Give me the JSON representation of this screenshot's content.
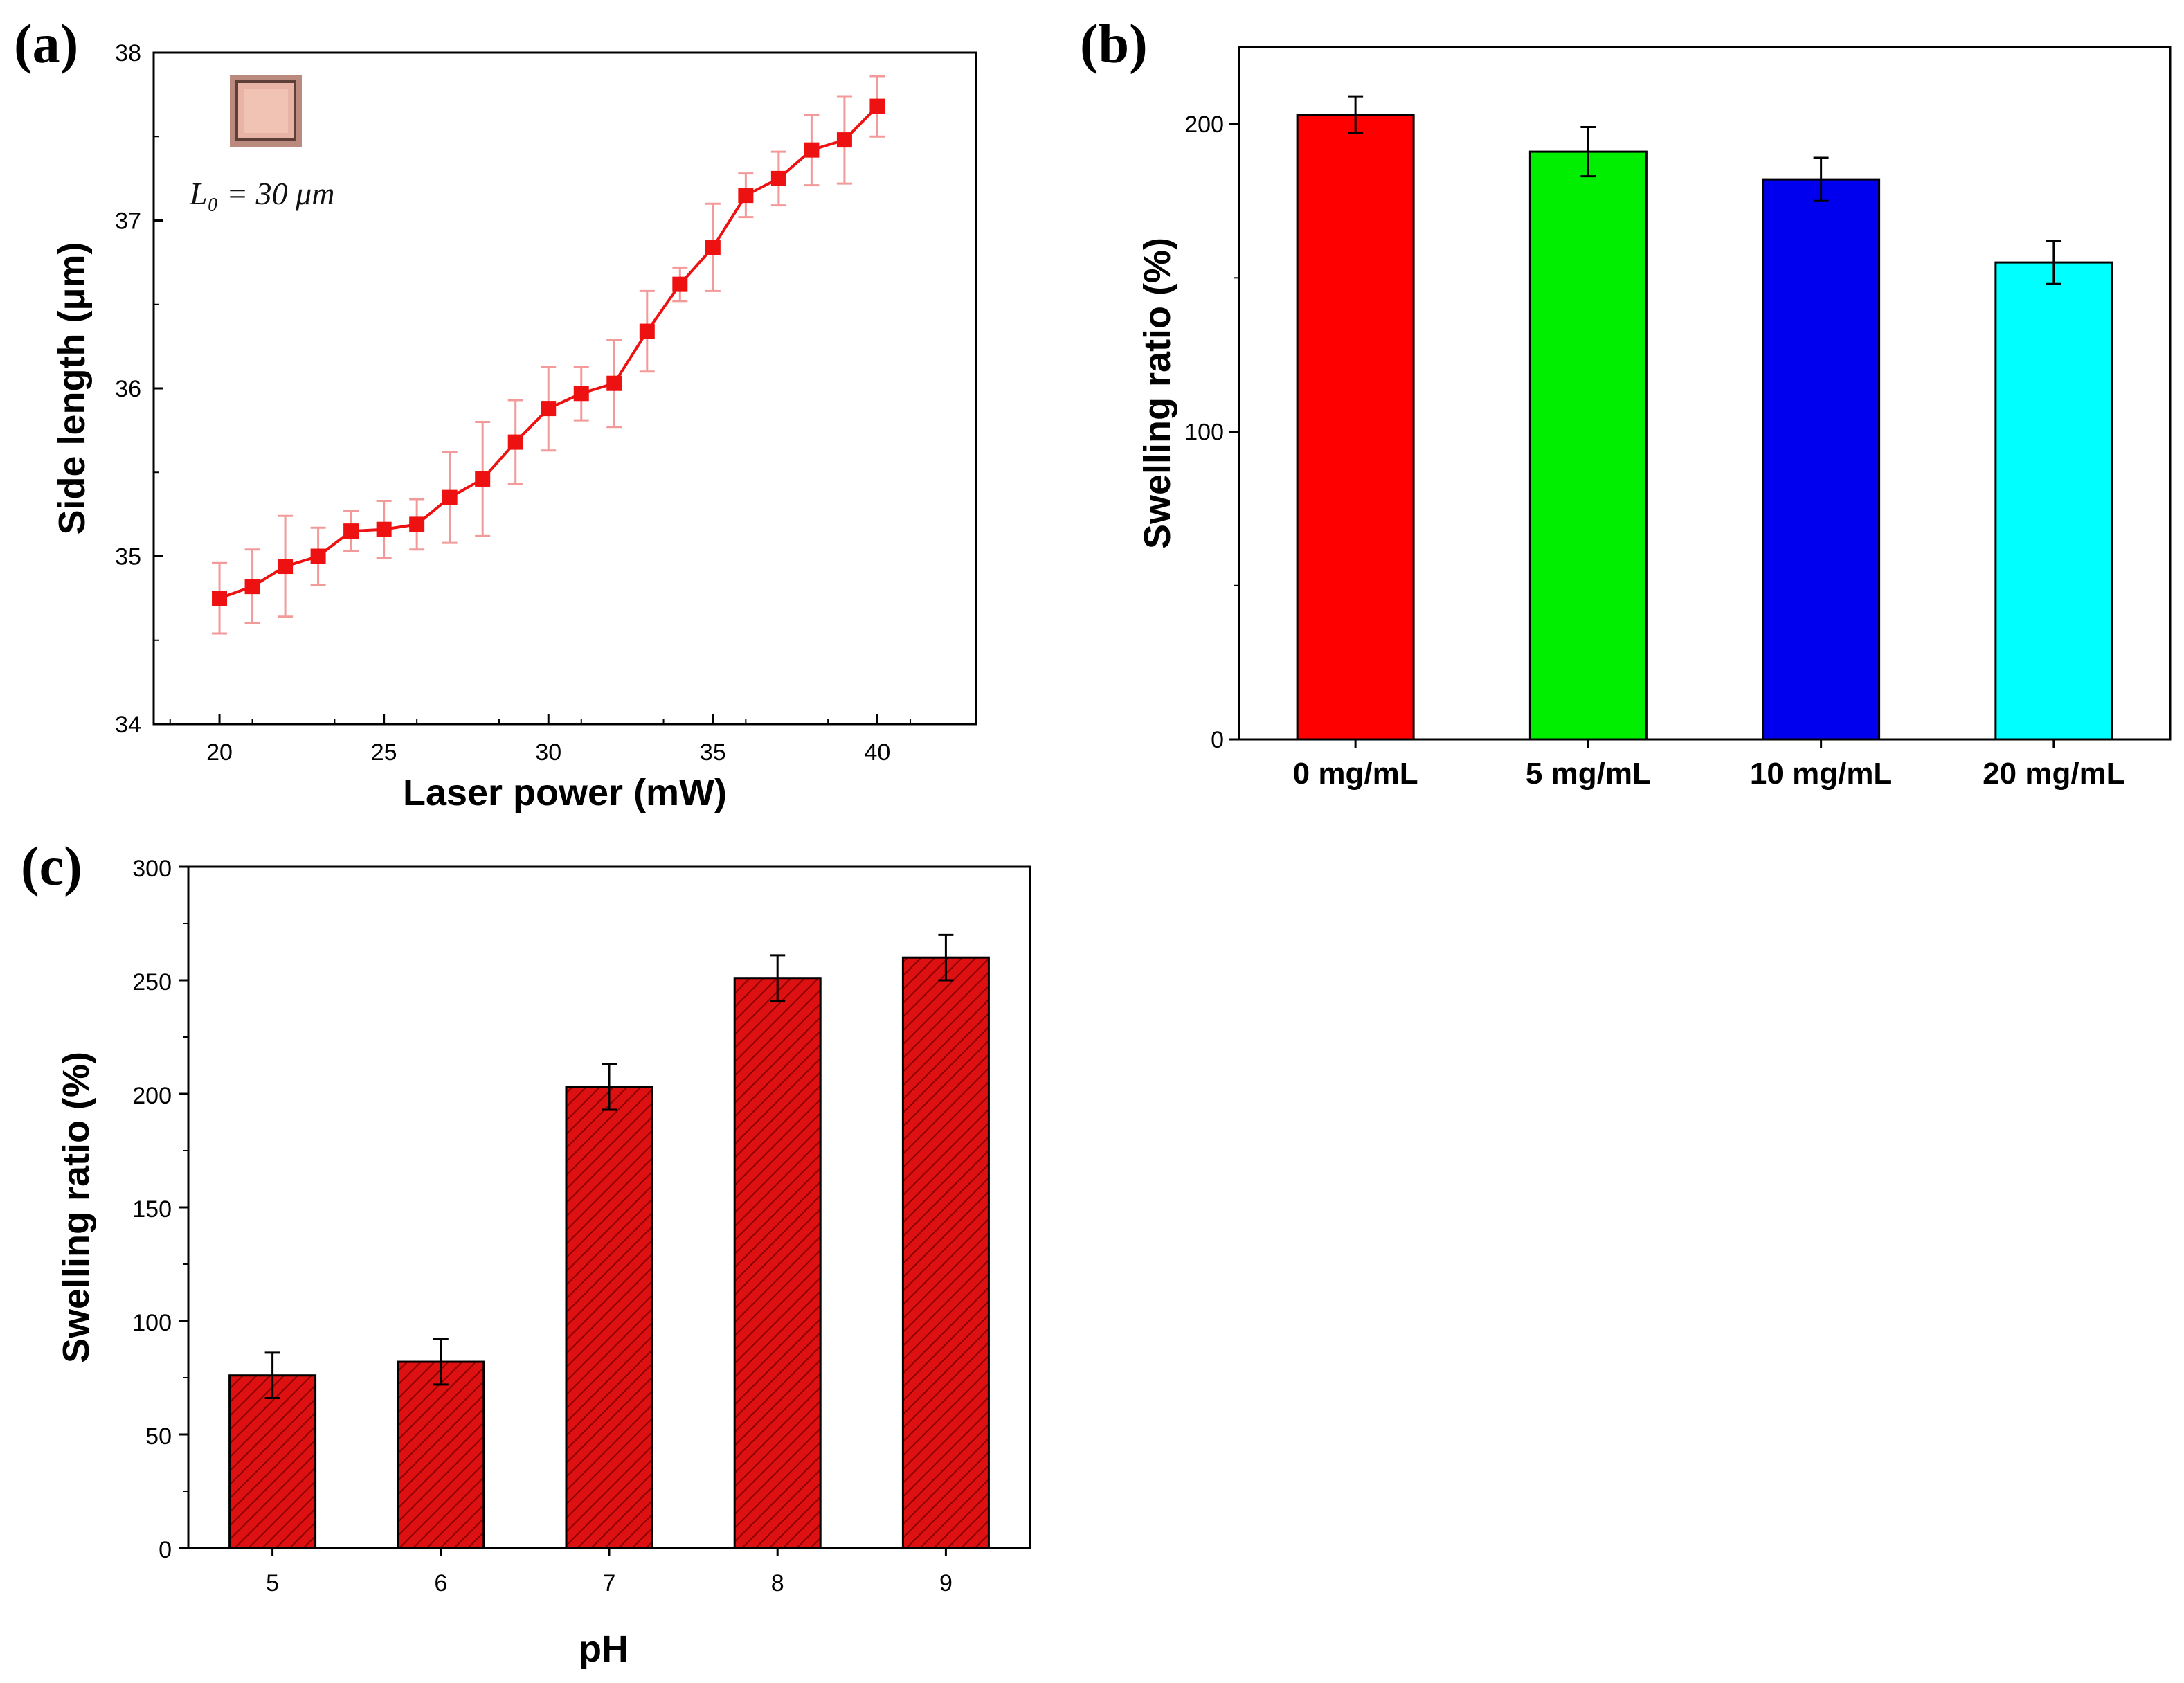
{
  "colors": {
    "series_a": "#ee1111",
    "errbar_a": "#f29a9a",
    "hatch_c": "#cc1111"
  },
  "inset_icon": "hydrogel-square-icon",
  "chart_data": [
    {
      "panel_label": "(a)",
      "type": "line",
      "x": [
        20,
        21,
        22,
        23,
        24,
        25,
        26,
        27,
        28,
        29,
        30,
        31,
        32,
        33,
        34,
        35,
        36,
        37,
        38,
        39,
        40
      ],
      "values": [
        34.75,
        34.82,
        34.94,
        35.0,
        35.15,
        35.16,
        35.19,
        35.35,
        35.46,
        35.68,
        35.88,
        35.97,
        36.03,
        36.34,
        36.62,
        36.84,
        37.15,
        37.25,
        37.42,
        37.48,
        37.68
      ],
      "errors": [
        0.21,
        0.22,
        0.3,
        0.17,
        0.12,
        0.17,
        0.15,
        0.27,
        0.34,
        0.25,
        0.25,
        0.16,
        0.26,
        0.24,
        0.1,
        0.26,
        0.13,
        0.16,
        0.21,
        0.26,
        0.18
      ],
      "xlabel": "Laser power (mW)",
      "ylabel": "Side length (μm)",
      "xlim": [
        18,
        43
      ],
      "ylim": [
        34,
        38
      ],
      "xticks": [
        20,
        25,
        30,
        35,
        40
      ],
      "yticks": [
        34,
        35,
        36,
        37,
        38
      ],
      "annotation": "L₀ = 30 μm"
    },
    {
      "panel_label": "(b)",
      "type": "bar",
      "categories": [
        "0 mg/mL",
        "5 mg/mL",
        "10 mg/mL",
        "20 mg/mL"
      ],
      "values": [
        203,
        191,
        182,
        155
      ],
      "errors": [
        6,
        8,
        7,
        7
      ],
      "colors": [
        "#ff0000",
        "#00ee00",
        "#0000ee",
        "#00ffff"
      ],
      "xlabel": "",
      "ylabel": "Swelling ratio (%)",
      "ylim": [
        0,
        225
      ],
      "yticks": [
        0,
        100,
        200
      ]
    },
    {
      "panel_label": "(c)",
      "type": "bar",
      "categories": [
        "5",
        "6",
        "7",
        "8",
        "9"
      ],
      "values": [
        76,
        82,
        203,
        251,
        260
      ],
      "errors": [
        10,
        10,
        10,
        10,
        10
      ],
      "xlabel": "pH",
      "ylabel": "Swelling ratio (%)",
      "ylim": [
        0,
        300
      ],
      "yticks": [
        0,
        50,
        100,
        150,
        200,
        250,
        300
      ]
    }
  ]
}
